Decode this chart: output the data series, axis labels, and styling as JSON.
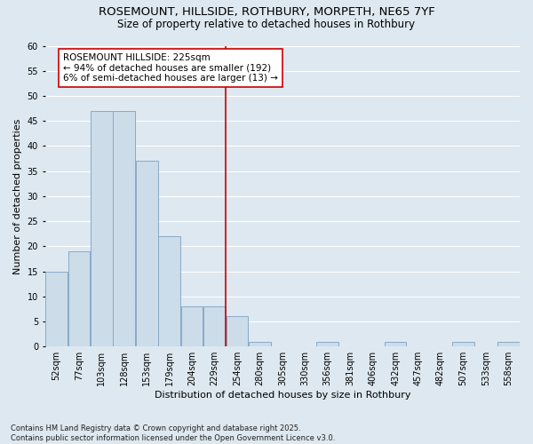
{
  "title_line1": "ROSEMOUNT, HILLSIDE, ROTHBURY, MORPETH, NE65 7YF",
  "title_line2": "Size of property relative to detached houses in Rothbury",
  "xlabel": "Distribution of detached houses by size in Rothbury",
  "ylabel": "Number of detached properties",
  "categories": [
    "52sqm",
    "77sqm",
    "103sqm",
    "128sqm",
    "153sqm",
    "179sqm",
    "204sqm",
    "229sqm",
    "254sqm",
    "280sqm",
    "305sqm",
    "330sqm",
    "356sqm",
    "381sqm",
    "406sqm",
    "432sqm",
    "457sqm",
    "482sqm",
    "507sqm",
    "533sqm",
    "558sqm"
  ],
  "values": [
    15,
    19,
    47,
    47,
    37,
    22,
    8,
    8,
    6,
    1,
    0,
    0,
    1,
    0,
    0,
    1,
    0,
    0,
    1,
    0,
    1
  ],
  "bar_color": "#ccdce9",
  "bar_edge_color": "#88aac8",
  "bg_color": "#dde8f0",
  "grid_color": "#ffffff",
  "annotation_box_color": "#ffffff",
  "annotation_border_color": "#cc0000",
  "vline_color": "#cc0000",
  "vline_x_index": 7,
  "annotation_title": "ROSEMOUNT HILLSIDE: 225sqm",
  "annotation_line1": "← 94% of detached houses are smaller (192)",
  "annotation_line2": "6% of semi-detached houses are larger (13) →",
  "ylim": [
    0,
    60
  ],
  "yticks": [
    0,
    5,
    10,
    15,
    20,
    25,
    30,
    35,
    40,
    45,
    50,
    55,
    60
  ],
  "footer": "Contains HM Land Registry data © Crown copyright and database right 2025.\nContains public sector information licensed under the Open Government Licence v3.0.",
  "title_fontsize": 9.5,
  "subtitle_fontsize": 8.5,
  "axis_label_fontsize": 8,
  "tick_fontsize": 7,
  "annotation_fontsize": 7.5,
  "footer_fontsize": 6
}
